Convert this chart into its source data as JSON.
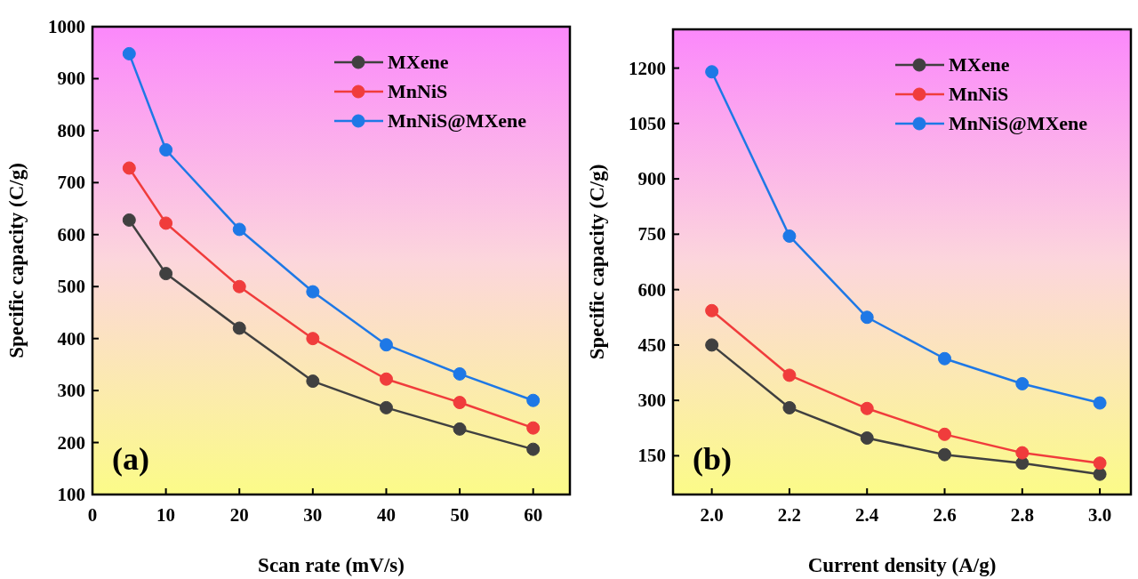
{
  "chart_data": [
    {
      "type": "line",
      "xlabel": "Scan rate (mV/s)",
      "ylabel": "Specific capacity (C/g)",
      "annotations": [
        "(a)"
      ],
      "x": [
        5,
        10,
        20,
        30,
        40,
        50,
        60
      ],
      "xlim": [
        0,
        65
      ],
      "xticks": [
        0,
        10,
        20,
        30,
        40,
        50,
        60
      ],
      "ylim": [
        100,
        1000
      ],
      "yticks": [
        100,
        200,
        300,
        400,
        500,
        600,
        700,
        800,
        900,
        1000
      ],
      "marker": "circle",
      "legend": "top right",
      "grid": false,
      "series": [
        {
          "name": "MXene",
          "color": "#404040",
          "values": [
            628,
            525,
            420,
            318,
            267,
            226,
            187
          ]
        },
        {
          "name": "MnNiS",
          "color": "#f03c3c",
          "values": [
            728,
            622,
            500,
            400,
            322,
            277,
            228
          ]
        },
        {
          "name": "MnNiS@MXene",
          "color": "#1e78e6",
          "values": [
            948,
            763,
            610,
            490,
            388,
            332,
            281
          ]
        }
      ]
    },
    {
      "type": "line",
      "xlabel": "Current density (A/g)",
      "ylabel": "Specific capacity (C/g)",
      "annotations": [
        "(b)"
      ],
      "x": [
        2.0,
        2.2,
        2.4,
        2.6,
        2.8,
        3.0
      ],
      "xlim": [
        1.9,
        3.08
      ],
      "xticks": [
        {
          "value": 2.0,
          "label": "2.0"
        },
        {
          "value": 2.2,
          "label": "2.2"
        },
        {
          "value": 2.4,
          "label": "2.4"
        },
        {
          "value": 2.6,
          "label": "2.6"
        },
        {
          "value": 2.8,
          "label": "2.8"
        },
        {
          "value": 3.0,
          "label": "3.0"
        }
      ],
      "ylim": [
        45,
        1305
      ],
      "yticks": [
        150,
        300,
        450,
        600,
        750,
        900,
        1050,
        1200
      ],
      "marker": "circle",
      "legend": "top right",
      "grid": false,
      "series": [
        {
          "name": "MXene",
          "color": "#404040",
          "values": [
            450,
            280,
            198,
            153,
            130,
            100
          ]
        },
        {
          "name": "MnNiS",
          "color": "#f03c3c",
          "values": [
            543,
            368,
            278,
            208,
            158,
            130
          ]
        },
        {
          "name": "MnNiS@MXene",
          "color": "#1e78e6",
          "values": [
            1190,
            745,
            525,
            413,
            345,
            293
          ]
        }
      ]
    }
  ]
}
